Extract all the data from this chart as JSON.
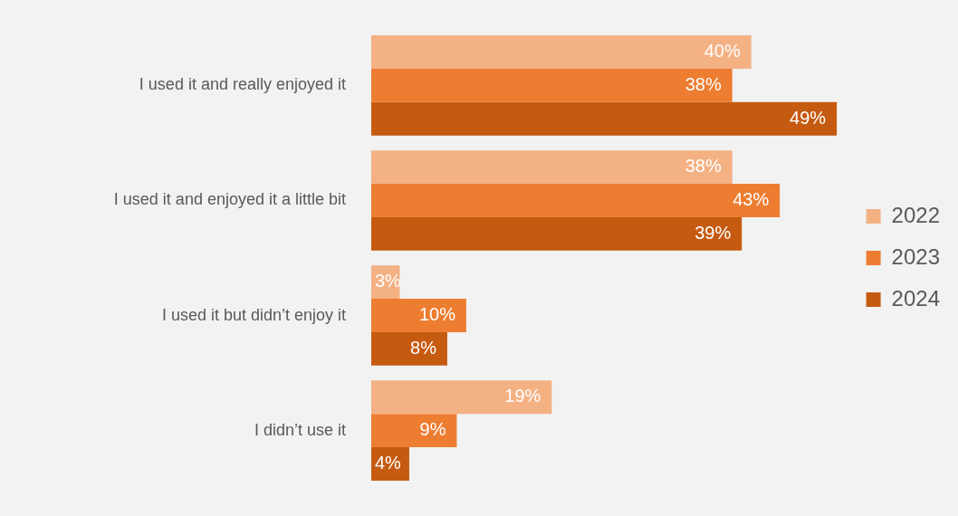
{
  "chart_data": {
    "type": "bar",
    "orientation": "horizontal",
    "categories": [
      "I used it and really enjoyed it",
      "I used it and enjoyed it a little bit",
      "I used it but didn’t enjoy it",
      "I didn’t use it"
    ],
    "series": [
      {
        "name": "2022",
        "color": "#f4b183",
        "values": [
          40,
          38,
          3,
          19
        ],
        "value_labels": [
          "40%",
          "38%",
          "3%",
          "19%"
        ]
      },
      {
        "name": "2023",
        "color": "#ed7d31",
        "values": [
          38,
          43,
          10,
          9
        ],
        "value_labels": [
          "38%",
          "43%",
          "10%",
          "9%"
        ]
      },
      {
        "name": "2024",
        "color": "#c55a11",
        "values": [
          49,
          39,
          8,
          4
        ],
        "value_labels": [
          "49%",
          "39%",
          "8%",
          "4%"
        ]
      }
    ],
    "legend": "right",
    "grid": false
  }
}
